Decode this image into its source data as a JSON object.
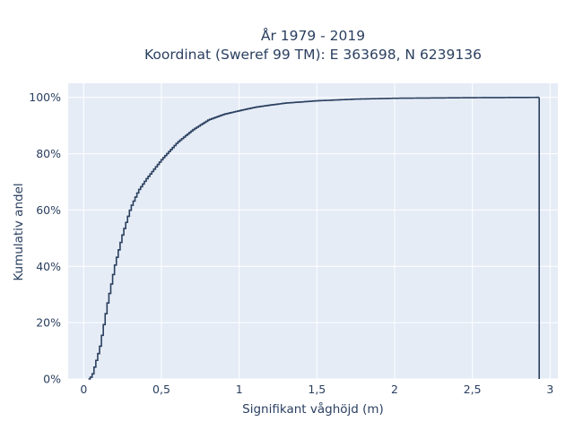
{
  "chart_data": {
    "type": "line",
    "subtype": "empirical-cdf-step",
    "title_lines": [
      "År 1979 - 2019",
      "Koordinat (Sweref 99 TM): E 363698, N 6239136"
    ],
    "xlabel": "Signifikant våghöjd (m)",
    "ylabel": "Kumulativ andel",
    "xlim": [
      -0.1,
      3.05
    ],
    "ylim": [
      0,
      1.05
    ],
    "x_ticks": [
      0,
      0.5,
      1,
      1.5,
      2,
      2.5,
      3
    ],
    "x_tick_labels": [
      "0",
      "0,5",
      "1",
      "1,5",
      "2",
      "2,5",
      "3"
    ],
    "y_ticks": [
      0,
      0.2,
      0.4,
      0.6,
      0.8,
      1.0
    ],
    "y_tick_labels": [
      "0%",
      "20%",
      "40%",
      "60%",
      "80%",
      "100%"
    ],
    "grid": true,
    "background_color": "#e5ecf6",
    "grid_color": "#ffffff",
    "line_color": "#2a3f5f",
    "series": [
      {
        "x": [
          0.03,
          0.05,
          0.1,
          0.15,
          0.2,
          0.25,
          0.3,
          0.35,
          0.4,
          0.5,
          0.6,
          0.7,
          0.8,
          0.9,
          1.0,
          1.1,
          1.2,
          1.3,
          1.5,
          1.75,
          2.0,
          2.5,
          2.93,
          2.93
        ],
        "y": [
          0.0,
          0.01,
          0.11,
          0.27,
          0.41,
          0.52,
          0.61,
          0.67,
          0.71,
          0.78,
          0.84,
          0.885,
          0.92,
          0.94,
          0.953,
          0.965,
          0.973,
          0.98,
          0.988,
          0.994,
          0.997,
          0.999,
          1.0,
          0.0
        ]
      }
    ]
  }
}
